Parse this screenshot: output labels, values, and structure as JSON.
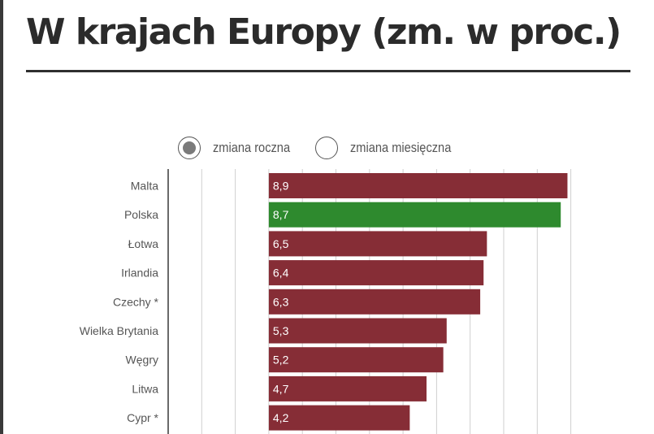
{
  "title": "W krajach Europy (zm. w proc.)",
  "controls": {
    "yearly_label": "zmiana roczna",
    "monthly_label": "zmiana miesięczna",
    "selected": "yearly"
  },
  "colors": {
    "bar_default": "#862d36",
    "bar_highlight": "#2e8a2e",
    "grid": "#cfcfcf",
    "axis": "#444444"
  },
  "chart_data": {
    "type": "bar",
    "orientation": "horizontal",
    "categories": [
      "Malta",
      "Polska",
      "Łotwa",
      "Irlandia",
      "Czechy *",
      "Wielka Brytania",
      "Węgry",
      "Litwa",
      "Cypr *"
    ],
    "value_labels": [
      "8,9",
      "8,7",
      "6,5",
      "6,4",
      "6,3",
      "5,3",
      "5,2",
      "4,7",
      "4,2"
    ],
    "values": [
      8.9,
      8.7,
      6.5,
      6.4,
      6.3,
      5.3,
      5.2,
      4.7,
      4.2
    ],
    "highlight": "Polska",
    "xlim": [
      -3,
      9.5
    ],
    "xticks": [
      -3,
      -2,
      -1,
      0,
      1,
      2,
      3,
      4,
      5,
      6,
      7,
      8,
      9
    ],
    "grid": true,
    "legend": "none"
  }
}
